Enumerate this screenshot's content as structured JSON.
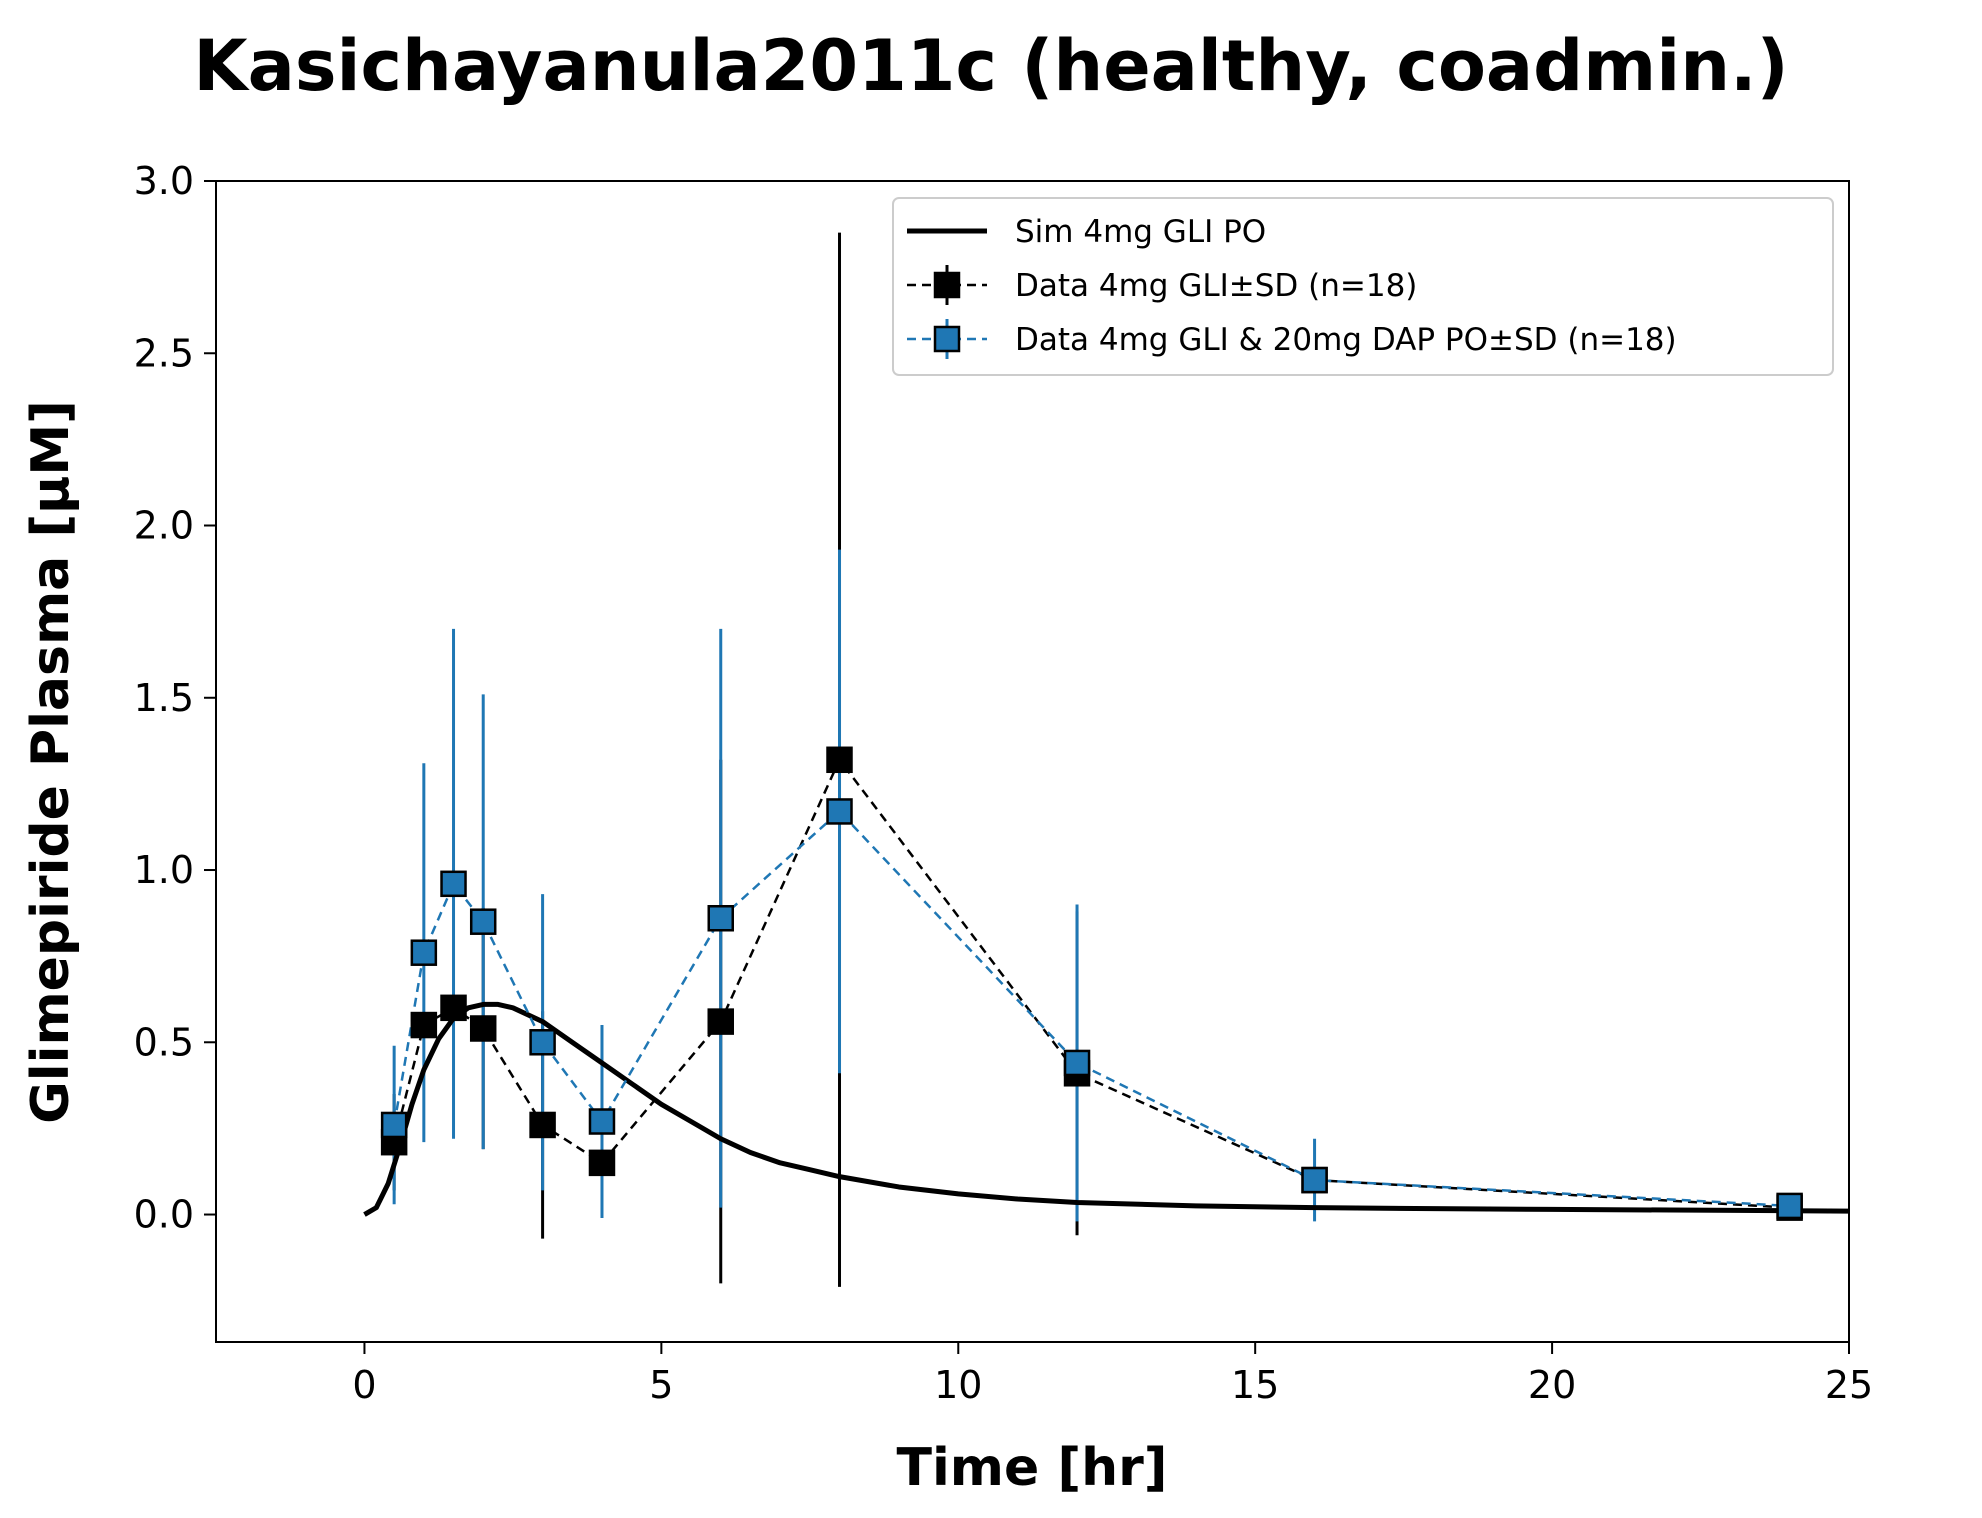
{
  "chart_data": {
    "type": "line",
    "title": "Kasichayanula2011c (healthy, coadmin.)",
    "xlabel": "Time [hr]",
    "ylabel": "Glimepiride Plasma [µM]",
    "xlim": [
      -2.5,
      25
    ],
    "ylim": [
      -0.37,
      3.0
    ],
    "xticks": [
      0,
      5,
      10,
      15,
      20,
      25
    ],
    "xtick_labels": [
      "0",
      "5",
      "10",
      "15",
      "20",
      "25"
    ],
    "yticks": [
      0.0,
      0.5,
      1.0,
      1.5,
      2.0,
      2.5,
      3.0
    ],
    "ytick_labels": [
      "0.0",
      "0.5",
      "1.0",
      "1.5",
      "2.0",
      "2.5",
      "3.0"
    ],
    "grid": false,
    "legend_position": "top-right",
    "series": [
      {
        "name": "Sim 4mg GLI PO",
        "kind": "line",
        "color": "#000000",
        "x": [
          0,
          0.2,
          0.4,
          0.6,
          0.8,
          1.0,
          1.25,
          1.5,
          1.75,
          2.0,
          2.25,
          2.5,
          3.0,
          3.5,
          4.0,
          4.5,
          5.0,
          5.5,
          6.0,
          6.5,
          7.0,
          7.5,
          8.0,
          9.0,
          10.0,
          11.0,
          12.0,
          14.0,
          16.0,
          18.0,
          20.0,
          22.0,
          24.0,
          25.0
        ],
        "y": [
          0.0,
          0.02,
          0.09,
          0.2,
          0.32,
          0.42,
          0.51,
          0.57,
          0.6,
          0.61,
          0.61,
          0.6,
          0.56,
          0.5,
          0.44,
          0.38,
          0.32,
          0.27,
          0.22,
          0.18,
          0.15,
          0.13,
          0.11,
          0.08,
          0.06,
          0.045,
          0.035,
          0.025,
          0.02,
          0.017,
          0.015,
          0.013,
          0.011,
          0.01
        ]
      },
      {
        "name": "Data 4mg GLI±SD (n=18)",
        "kind": "errorbar",
        "color": "#000000",
        "marker_face": "#000000",
        "x": [
          0.5,
          1.0,
          1.5,
          2.0,
          3.0,
          4.0,
          6.0,
          8.0,
          12.0,
          16.0,
          24.0
        ],
        "y": [
          0.21,
          0.55,
          0.6,
          0.54,
          0.26,
          0.15,
          0.56,
          1.32,
          0.41,
          0.1,
          0.02
        ],
        "sd": [
          0.14,
          0.0,
          0.0,
          0.35,
          0.33,
          0.0,
          0.76,
          1.53,
          0.47,
          0.0,
          0.0
        ]
      },
      {
        "name": "Data 4mg GLI & 20mg DAP PO±SD (n=18)",
        "kind": "errorbar",
        "color": "#1f77b4",
        "marker_face": "#1f77b4",
        "x": [
          0.5,
          1.0,
          1.5,
          2.0,
          3.0,
          4.0,
          6.0,
          8.0,
          12.0,
          16.0,
          24.0
        ],
        "y": [
          0.26,
          0.76,
          0.96,
          0.85,
          0.5,
          0.27,
          0.86,
          1.17,
          0.44,
          0.1,
          0.025
        ],
        "sd": [
          0.23,
          0.55,
          0.74,
          0.66,
          0.43,
          0.28,
          0.84,
          0.76,
          0.46,
          0.12,
          0.0
        ]
      }
    ]
  }
}
